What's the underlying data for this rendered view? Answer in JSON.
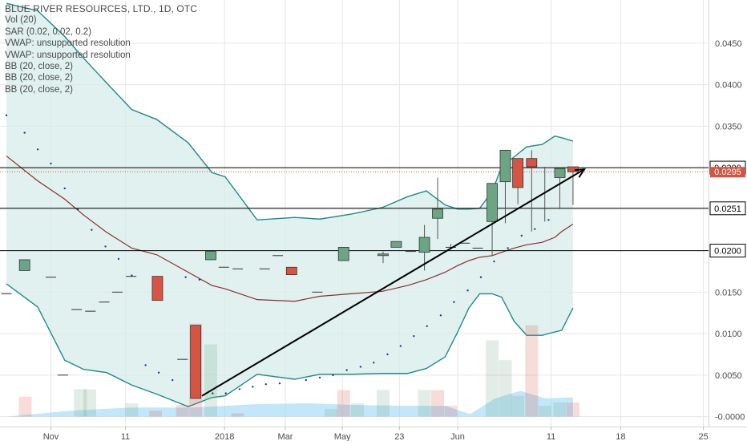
{
  "legend": {
    "title": "BLUE RIVER RESOURCES, LTD., 1D, OTC",
    "indicators": [
      "Vol (20)",
      "SAR (0.02, 0.02, 0.2)",
      "VWAP: unsupported resolution",
      "VWAP: unsupported resolution",
      "BB (20, close, 2)",
      "BB (20, close, 2)",
      "BB (20, close, 2)"
    ]
  },
  "colors": {
    "up": "#6ba583",
    "down": "#d75442",
    "bb_band": "#1f8a8a",
    "bb_fill": "#d6ecea",
    "bb_basis": "#8b2e2e",
    "trendline": "#000000",
    "sar": "#1c3f8c",
    "volume_area": "#8fd3f5",
    "grid": "#e6e6e6"
  },
  "chart_data": {
    "type": "candlestick",
    "title": "BLUE RIVER RESOURCES, LTD., 1D, OTC",
    "y_axis": {
      "ticks": [
        0.045,
        0.04,
        0.035,
        0.03,
        0.025,
        0.02,
        0.015,
        0.01,
        0.005,
        0.0
      ],
      "tick_labels": [
        "0.0450",
        "0.0400",
        "0.0350",
        "0.0300",
        "0.0250",
        "0.0200",
        "0.0150",
        "0.0100",
        "0.0050",
        "-0.0000"
      ],
      "range": [
        -0.0012,
        0.0502
      ],
      "position": "right"
    },
    "x_axis": {
      "tick_labels": [
        "Nov",
        "11",
        "2018",
        "Mar",
        "May",
        "23",
        "Jun",
        "11",
        "18",
        "25"
      ],
      "range": [
        0,
        100
      ]
    },
    "horizontal_levels": [
      {
        "value": 0.03,
        "label": "0.0300",
        "label_style": "outline"
      },
      {
        "value": 0.0251,
        "label": "0.0251",
        "label_style": "outline"
      },
      {
        "value": 0.02,
        "label": "0.0200",
        "label_style": "outline"
      }
    ],
    "last_price": {
      "value": 0.0295,
      "label": "0.0295"
    },
    "candles": [
      {
        "x": 0.0,
        "o": 0.0148,
        "h": 0.0148,
        "l": 0.0148,
        "c": 0.0148
      },
      {
        "x": 2.9,
        "o": 0.0176,
        "h": 0.0189,
        "l": 0.0176,
        "c": 0.0189
      },
      {
        "x": 7.1,
        "o": 0.0168,
        "h": 0.0168,
        "l": 0.0168,
        "c": 0.0168
      },
      {
        "x": 9.0,
        "o": 0.005,
        "h": 0.005,
        "l": 0.005,
        "c": 0.005
      },
      {
        "x": 11.2,
        "o": 0.0129,
        "h": 0.0129,
        "l": 0.0129,
        "c": 0.0129
      },
      {
        "x": 13.4,
        "o": 0.0127,
        "h": 0.0127,
        "l": 0.0127,
        "c": 0.0127
      },
      {
        "x": 15.6,
        "o": 0.0138,
        "h": 0.0138,
        "l": 0.0138,
        "c": 0.0138
      },
      {
        "x": 17.7,
        "o": 0.015,
        "h": 0.015,
        "l": 0.015,
        "c": 0.015
      },
      {
        "x": 19.9,
        "o": 0.0169,
        "h": 0.0169,
        "l": 0.0169,
        "c": 0.0169
      },
      {
        "x": 24.1,
        "o": 0.0169,
        "h": 0.0169,
        "l": 0.014,
        "c": 0.014
      },
      {
        "x": 28.1,
        "o": 0.0069,
        "h": 0.0069,
        "l": 0.0069,
        "c": 0.0069
      },
      {
        "x": 30.2,
        "o": 0.011,
        "h": 0.011,
        "l": 0.0022,
        "c": 0.0022
      },
      {
        "x": 32.6,
        "o": 0.0189,
        "h": 0.0199,
        "l": 0.0189,
        "c": 0.0199
      },
      {
        "x": 34.7,
        "o": 0.018,
        "h": 0.018,
        "l": 0.018,
        "c": 0.018
      },
      {
        "x": 36.9,
        "o": 0.0178,
        "h": 0.0178,
        "l": 0.0178,
        "c": 0.0178
      },
      {
        "x": 41.2,
        "o": 0.0178,
        "h": 0.0178,
        "l": 0.0178,
        "c": 0.0178
      },
      {
        "x": 43.3,
        "o": 0.0194,
        "h": 0.0194,
        "l": 0.0194,
        "c": 0.0194
      },
      {
        "x": 45.5,
        "o": 0.018,
        "h": 0.018,
        "l": 0.0171,
        "c": 0.0171
      },
      {
        "x": 49.6,
        "o": 0.015,
        "h": 0.015,
        "l": 0.015,
        "c": 0.015
      },
      {
        "x": 53.8,
        "o": 0.0188,
        "h": 0.0204,
        "l": 0.0188,
        "c": 0.0204
      },
      {
        "x": 60.1,
        "o": 0.0194,
        "h": 0.0199,
        "l": 0.0185,
        "c": 0.0196
      },
      {
        "x": 62.2,
        "o": 0.0204,
        "h": 0.0211,
        "l": 0.0204,
        "c": 0.0211
      },
      {
        "x": 64.5,
        "o": 0.0199,
        "h": 0.0199,
        "l": 0.0199,
        "c": 0.0199
      },
      {
        "x": 66.7,
        "o": 0.0198,
        "h": 0.0231,
        "l": 0.0176,
        "c": 0.0216
      },
      {
        "x": 68.8,
        "o": 0.0239,
        "h": 0.0288,
        "l": 0.0214,
        "c": 0.025
      },
      {
        "x": 70.9,
        "o": 0.0204,
        "h": 0.0208,
        "l": 0.0204,
        "c": 0.0203
      },
      {
        "x": 73.1,
        "o": 0.0209,
        "h": 0.0209,
        "l": 0.0209,
        "c": 0.0209
      },
      {
        "x": 75.2,
        "o": 0.0203,
        "h": 0.0203,
        "l": 0.0203,
        "c": 0.0203
      },
      {
        "x": 77.5,
        "o": 0.0235,
        "h": 0.0281,
        "l": 0.0194,
        "c": 0.0281
      },
      {
        "x": 79.6,
        "o": 0.0283,
        "h": 0.0321,
        "l": 0.0233,
        "c": 0.0321
      },
      {
        "x": 81.6,
        "o": 0.0311,
        "h": 0.0311,
        "l": 0.0256,
        "c": 0.0276
      },
      {
        "x": 83.8,
        "o": 0.0311,
        "h": 0.0321,
        "l": 0.0223,
        "c": 0.0301
      },
      {
        "x": 85.9,
        "o": 0.0251,
        "h": 0.0301,
        "l": 0.0235,
        "c": 0.0251
      },
      {
        "x": 88.3,
        "o": 0.0288,
        "h": 0.0299,
        "l": 0.025,
        "c": 0.0299
      },
      {
        "x": 90.4,
        "o": 0.0301,
        "h": 0.0301,
        "l": 0.0255,
        "c": 0.0295
      }
    ],
    "sar": [
      {
        "x": 0.0,
        "y": 0.0363
      },
      {
        "x": 2.9,
        "y": 0.0342
      },
      {
        "x": 5.0,
        "y": 0.0322
      },
      {
        "x": 7.1,
        "y": 0.0305
      },
      {
        "x": 9.3,
        "y": 0.0275
      },
      {
        "x": 11.4,
        "y": 0.025
      },
      {
        "x": 13.6,
        "y": 0.0225
      },
      {
        "x": 15.8,
        "y": 0.0205
      },
      {
        "x": 17.9,
        "y": 0.019
      },
      {
        "x": 20.0,
        "y": 0.017
      },
      {
        "x": 22.2,
        "y": 0.0062
      },
      {
        "x": 24.3,
        "y": 0.0053
      },
      {
        "x": 26.5,
        "y": 0.0044
      },
      {
        "x": 28.6,
        "y": 0.0168
      },
      {
        "x": 30.8,
        "y": 0.0165
      },
      {
        "x": 32.9,
        "y": 0.0028
      },
      {
        "x": 35.0,
        "y": 0.0028
      },
      {
        "x": 37.2,
        "y": 0.0033
      },
      {
        "x": 39.3,
        "y": 0.0036
      },
      {
        "x": 41.4,
        "y": 0.0039
      },
      {
        "x": 43.6,
        "y": 0.004
      },
      {
        "x": 47.8,
        "y": 0.0044
      },
      {
        "x": 50.0,
        "y": 0.0047
      },
      {
        "x": 52.1,
        "y": 0.005
      },
      {
        "x": 54.3,
        "y": 0.0056
      },
      {
        "x": 56.5,
        "y": 0.006
      },
      {
        "x": 58.6,
        "y": 0.0065
      },
      {
        "x": 60.8,
        "y": 0.0075
      },
      {
        "x": 62.9,
        "y": 0.0085
      },
      {
        "x": 65.0,
        "y": 0.0097
      },
      {
        "x": 67.1,
        "y": 0.0109
      },
      {
        "x": 69.3,
        "y": 0.0122
      },
      {
        "x": 71.4,
        "y": 0.0138
      },
      {
        "x": 73.6,
        "y": 0.0152
      },
      {
        "x": 75.7,
        "y": 0.0168
      },
      {
        "x": 77.8,
        "y": 0.0187
      },
      {
        "x": 80.0,
        "y": 0.0203
      },
      {
        "x": 82.2,
        "y": 0.0218
      },
      {
        "x": 84.3,
        "y": 0.0226
      },
      {
        "x": 86.5,
        "y": 0.0237
      }
    ],
    "bollinger": {
      "x": [
        0.0,
        5.0,
        9.3,
        12.3,
        16.0,
        20.0,
        24.0,
        29.0,
        32.8,
        34.9,
        40.0,
        46.0,
        50.0,
        55.0,
        60.0,
        64.0,
        67.0,
        70.0,
        72.0,
        73.8,
        75.5,
        77.5,
        79.0,
        81.0,
        83.0,
        85.5,
        87.5,
        88.6,
        90.4
      ],
      "upper": [
        0.0498,
        0.0489,
        0.0458,
        0.0432,
        0.0402,
        0.037,
        0.0358,
        0.033,
        0.0294,
        0.0289,
        0.0237,
        0.024,
        0.0238,
        0.0244,
        0.0252,
        0.0265,
        0.0272,
        0.0255,
        0.025,
        0.025,
        0.0251,
        0.0271,
        0.0301,
        0.0313,
        0.0325,
        0.0328,
        0.0338,
        0.0336,
        0.0332
      ],
      "basis": [
        0.0314,
        0.0284,
        0.0262,
        0.0243,
        0.0222,
        0.0203,
        0.0195,
        0.0174,
        0.0158,
        0.0154,
        0.0141,
        0.0139,
        0.0145,
        0.0148,
        0.0151,
        0.0158,
        0.0165,
        0.0174,
        0.0182,
        0.0188,
        0.0192,
        0.0194,
        0.0198,
        0.0203,
        0.0207,
        0.021,
        0.0216,
        0.0223,
        0.0232
      ],
      "lower": [
        0.016,
        0.0132,
        0.0068,
        0.0057,
        0.0053,
        0.0038,
        0.0027,
        0.0012,
        0.0023,
        0.0025,
        0.0051,
        0.0045,
        0.0051,
        0.0051,
        0.0052,
        0.0052,
        0.0058,
        0.0072,
        0.0102,
        0.0131,
        0.0148,
        0.0148,
        0.0144,
        0.0115,
        0.0098,
        0.0098,
        0.0102,
        0.0104,
        0.0131
      ]
    },
    "trendline": {
      "start": {
        "x": 31.2,
        "y": 0.0025
      },
      "end": {
        "x": 92.2,
        "y": 0.0298
      }
    },
    "volume": [
      {
        "x": 3.0,
        "v": 0.0024,
        "dir": "down"
      },
      {
        "x": 11.8,
        "v": 0.0033,
        "dir": "up"
      },
      {
        "x": 13.3,
        "v": 0.0033,
        "dir": "up"
      },
      {
        "x": 20.0,
        "v": 0.0016,
        "dir": "up"
      },
      {
        "x": 23.8,
        "v": 0.0007,
        "dir": "down"
      },
      {
        "x": 28.1,
        "v": 0.0014,
        "dir": "down"
      },
      {
        "x": 30.2,
        "v": 0.0112,
        "dir": "down"
      },
      {
        "x": 32.6,
        "v": 0.0087,
        "dir": "up"
      },
      {
        "x": 36.9,
        "v": 0.0004,
        "dir": "down"
      },
      {
        "x": 51.8,
        "v": 0.0009,
        "dir": "up"
      },
      {
        "x": 53.8,
        "v": 0.0032,
        "dir": "down"
      },
      {
        "x": 56.0,
        "v": 0.0016,
        "dir": "up"
      },
      {
        "x": 60.1,
        "v": 0.0032,
        "dir": "up"
      },
      {
        "x": 66.7,
        "v": 0.0032,
        "dir": "up"
      },
      {
        "x": 68.8,
        "v": 0.0032,
        "dir": "down"
      },
      {
        "x": 70.9,
        "v": 0.0013,
        "dir": "down"
      },
      {
        "x": 77.5,
        "v": 0.0092,
        "dir": "up"
      },
      {
        "x": 79.6,
        "v": 0.0068,
        "dir": "up"
      },
      {
        "x": 81.6,
        "v": 0.0025,
        "dir": "up"
      },
      {
        "x": 83.8,
        "v": 0.011,
        "dir": "down"
      },
      {
        "x": 85.9,
        "v": 0.0013,
        "dir": "up"
      },
      {
        "x": 88.3,
        "v": 0.0017,
        "dir": "up"
      },
      {
        "x": 90.4,
        "v": 0.0017,
        "dir": "down"
      }
    ],
    "volume_ma": {
      "x": [
        0.0,
        10.0,
        20.0,
        30.0,
        40.0,
        48.0,
        56.0,
        64.0,
        70.0,
        74.0,
        78.0,
        82.0,
        86.0,
        90.4
      ],
      "y": [
        0.0,
        0.0007,
        0.0011,
        0.0011,
        0.0015,
        0.0016,
        0.0014,
        0.0013,
        0.0013,
        0.0003,
        0.0022,
        0.0031,
        0.0022,
        0.0023
      ]
    },
    "grid": true
  }
}
